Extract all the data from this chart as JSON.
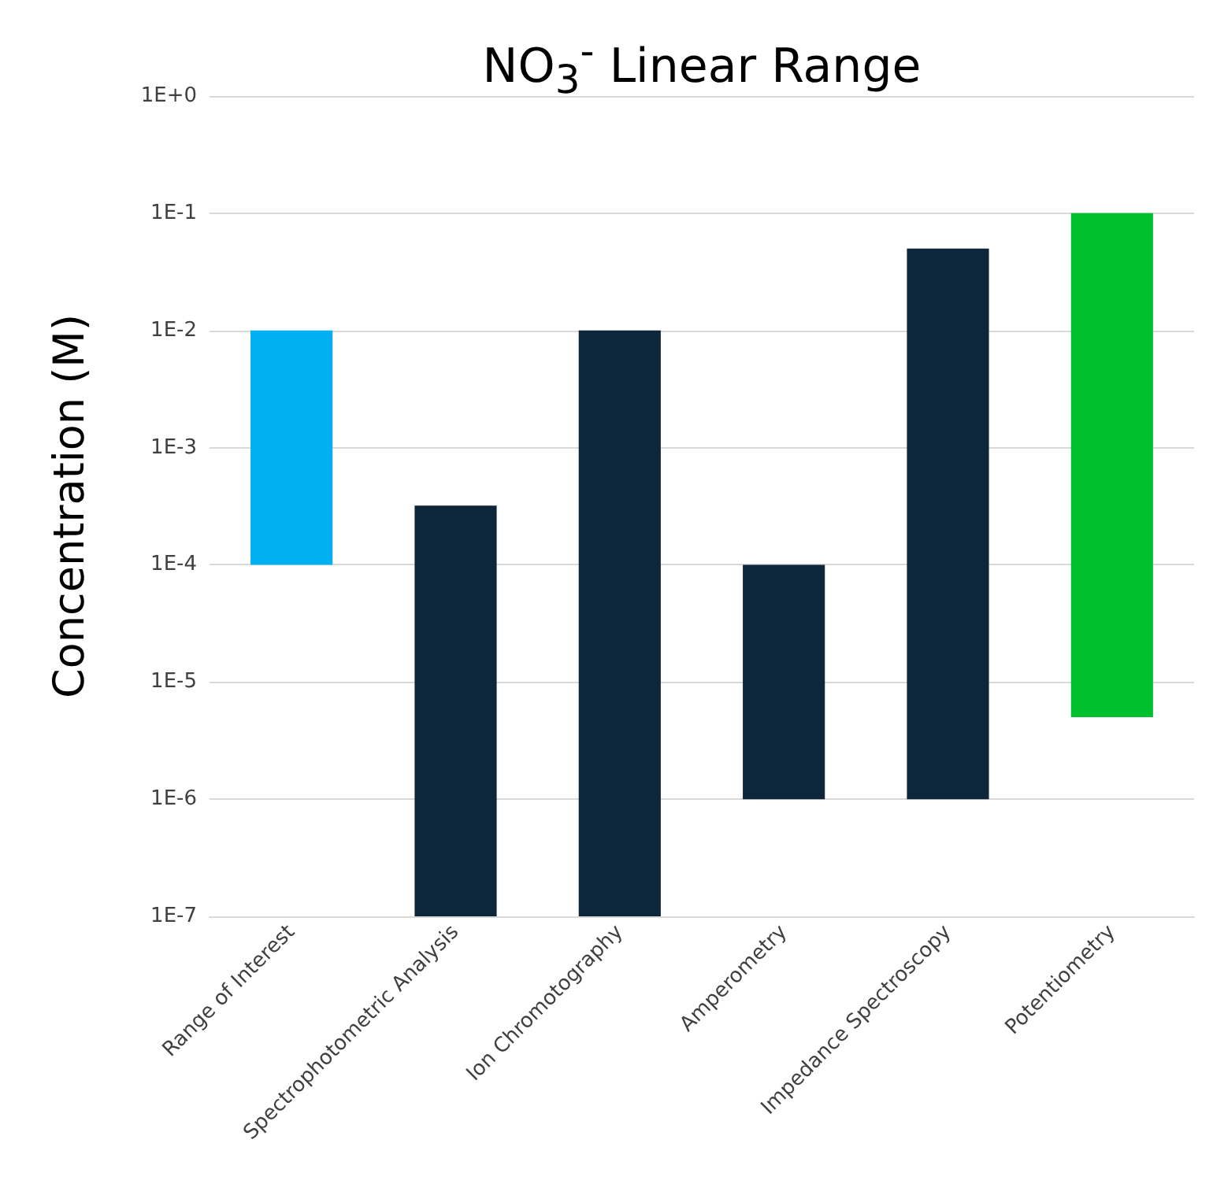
{
  "chart_data": {
    "type": "bar",
    "title": "NO$_{3}$$^{-}$ Linear Range",
    "ylabel": "Concentration (M)",
    "categories": [
      "Range of Interest",
      "Spectrophotometric Analysis",
      "Ion Chromotography",
      "Amperometry",
      "Impedance Spectroscopy",
      "Potentiometry"
    ],
    "base": [
      0.0001,
      1e-07,
      1e-07,
      1e-06,
      1e-06,
      5e-06
    ],
    "values": [
      0.0099,
      0.0003199,
      0.0099999,
      9.9e-05,
      0.049999,
      0.099995
    ],
    "colors": [
      "#00b0f0",
      "#0d263a",
      "#0d263a",
      "#0d263a",
      "#0d263a",
      "#00c02e"
    ],
    "log": "y",
    "ylim": [
      1e-07,
      1
    ],
    "yticks": [
      {
        "value": 1e-07,
        "label": "1E-7"
      },
      {
        "value": 1e-06,
        "label": "1E-6"
      },
      {
        "value": 1e-05,
        "label": "1E-5"
      },
      {
        "value": 0.0001,
        "label": "1E-4"
      },
      {
        "value": 0.001,
        "label": "1E-3"
      },
      {
        "value": 0.01,
        "label": "1E-2"
      },
      {
        "value": 0.1,
        "label": "1E-1"
      },
      {
        "value": 1,
        "label": "1E+0"
      }
    ],
    "grid": "y"
  }
}
